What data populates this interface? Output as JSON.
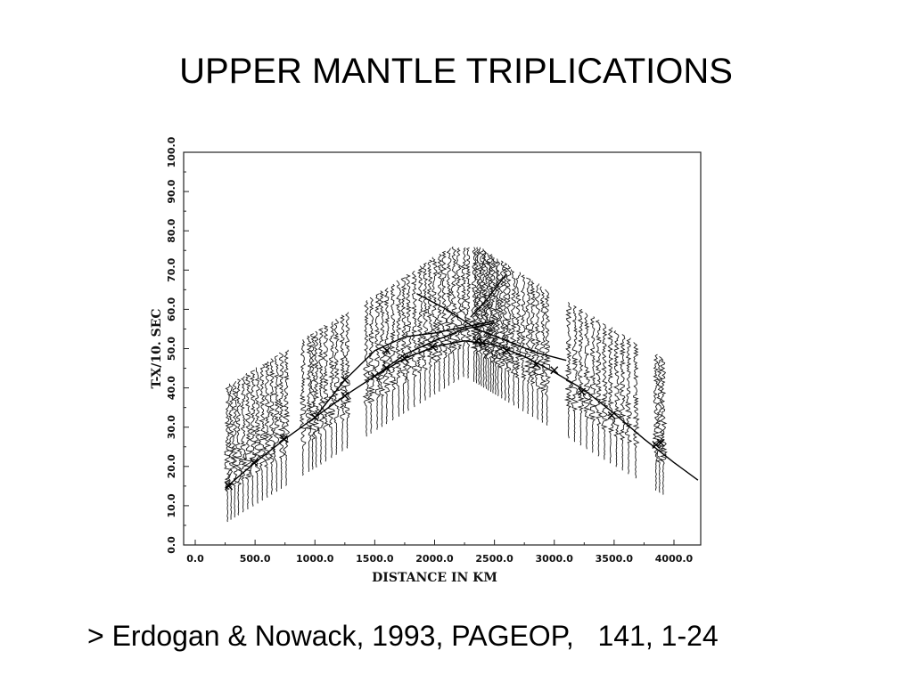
{
  "slide": {
    "title": "UPPER MANTLE TRIPLICATIONS",
    "citation": "> Erdogan & Nowack, 1993, PAGEOP,   141, 1-24"
  },
  "chart_data": {
    "type": "line",
    "xlabel": "DISTANCE IN KM",
    "ylabel": "T-X/10. SEC",
    "xlim": [
      0,
      4200
    ],
    "ylim": [
      0,
      100
    ],
    "x_ticks": [
      "0.0",
      "500.0",
      "1000.0",
      "1500.0",
      "2000.0",
      "2500.0",
      "3000.0",
      "3500.0",
      "4000.0"
    ],
    "y_ticks": [
      "0.0",
      "10.0",
      "20.0",
      "30.0",
      "40.0",
      "50.0",
      "60.0",
      "70.0",
      "80.0",
      "90.0",
      "100.0"
    ],
    "grid": false,
    "series": [
      {
        "kind": "travel-time-branch",
        "x": [
          250,
          500,
          750,
          1000,
          1250,
          1500,
          1750,
          2000,
          2250,
          2500,
          2750,
          3000,
          3250,
          3500,
          3750,
          4000,
          4200
        ],
        "y": [
          14.5,
          21,
          27,
          32.5,
          38,
          43,
          47.5,
          50.5,
          52,
          51,
          48,
          44,
          39.5,
          33.5,
          27,
          21,
          16.5
        ]
      },
      {
        "kind": "travel-time-branch",
        "x": [
          1000,
          1250,
          1500,
          1750,
          2000,
          2250,
          2500
        ],
        "y": [
          32.5,
          42,
          49.5,
          53,
          54,
          55.5,
          57
        ]
      },
      {
        "kind": "travel-time-branch",
        "x": [
          1500,
          1750,
          2000,
          2250,
          2500
        ],
        "y": [
          43,
          48.5,
          52,
          55,
          56.5
        ]
      },
      {
        "kind": "travel-time-branch",
        "x": [
          1850,
          2100,
          2350,
          2600,
          2850,
          3100
        ],
        "y": [
          64,
          60,
          55,
          52,
          49,
          47
        ]
      },
      {
        "kind": "travel-time-branch",
        "x": [
          2300,
          2450,
          2600
        ],
        "y": [
          58,
          63,
          69
        ]
      }
    ],
    "seismograms": {
      "distances_km": [
        270,
        300,
        330,
        360,
        400,
        440,
        480,
        520,
        560,
        600,
        640,
        680,
        720,
        760,
        900,
        950,
        980,
        1010,
        1050,
        1090,
        1140,
        1180,
        1230,
        1270,
        1430,
        1470,
        1520,
        1560,
        1600,
        1650,
        1700,
        1740,
        1780,
        1830,
        1880,
        1920,
        1960,
        2000,
        2040,
        2080,
        2120,
        2160,
        2200,
        2240,
        2280,
        2330,
        2350,
        2370,
        2390,
        2410,
        2430,
        2450,
        2470,
        2490,
        2510,
        2530,
        2560,
        2590,
        2620,
        2660,
        2700,
        2740,
        2780,
        2820,
        2860,
        2900,
        2940,
        3120,
        3170,
        3220,
        3270,
        3320,
        3370,
        3420,
        3470,
        3520,
        3570,
        3620,
        3680,
        3850,
        3880,
        3910
      ],
      "pick_markers": [
        [
          280,
          15
        ],
        [
          490,
          21
        ],
        [
          740,
          27
        ],
        [
          1000,
          32.5
        ],
        [
          1250,
          38
        ],
        [
          1500,
          43
        ],
        [
          1600,
          45
        ],
        [
          1750,
          47.5
        ],
        [
          1980,
          50.5
        ],
        [
          2350,
          52
        ],
        [
          2400,
          51.5
        ],
        [
          2600,
          49.5
        ],
        [
          2850,
          46
        ],
        [
          3000,
          44.5
        ],
        [
          3230,
          39
        ],
        [
          3480,
          33
        ],
        [
          3850,
          25.5
        ],
        [
          3890,
          26
        ],
        [
          1250,
          42
        ],
        [
          1600,
          49.5
        ]
      ]
    }
  }
}
